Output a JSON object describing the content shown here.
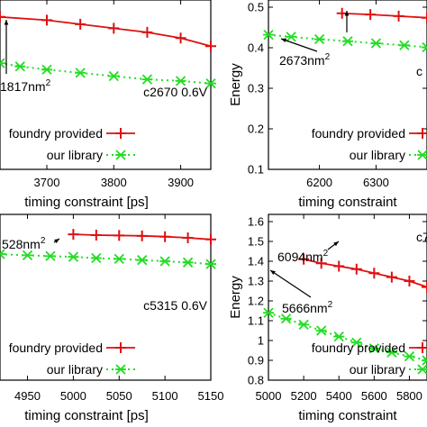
{
  "colors": {
    "foundry": "#dd1111",
    "library": "#22dd22",
    "axis": "#000000"
  },
  "chart_data": [
    {
      "panel": "top-left",
      "type": "line",
      "xlabel": "timing constraint [ps]",
      "ylabel": "",
      "xticks": [
        3700,
        3800,
        3900
      ],
      "xlim": [
        3630,
        3945
      ],
      "yticks": [],
      "ylim": [
        0.3,
        0.5
      ],
      "circuit_label": "c2670 0.6V",
      "series": [
        {
          "name": "foundry provided",
          "x": [
            3630,
            3700,
            3750,
            3800,
            3850,
            3900,
            3945
          ],
          "y": [
            0.488,
            0.484,
            0.479,
            0.474,
            0.469,
            0.462,
            0.452
          ]
        },
        {
          "name": "our library",
          "x": [
            3630,
            3660,
            3700,
            3750,
            3800,
            3850,
            3900,
            3945
          ],
          "y": [
            0.431,
            0.427,
            0.423,
            0.419,
            0.415,
            0.411,
            0.409,
            0.406
          ]
        }
      ],
      "annotations": [
        {
          "text": "1817nm²"
        }
      ],
      "legend": "bottom-left"
    },
    {
      "panel": "top-right",
      "type": "line",
      "xlabel": "timing constraint",
      "ylabel": "Energy",
      "xticks": [
        6200,
        6300
      ],
      "yticks": [
        0.1,
        0.2,
        0.3,
        0.4,
        0.5
      ],
      "ylim": [
        0.1,
        0.5
      ],
      "xlim": [
        6110,
        6390
      ],
      "circuit_label": "c",
      "series": [
        {
          "name": "foundry provided",
          "x": [
            6240,
            6290,
            6340,
            6390
          ],
          "y": [
            0.485,
            0.482,
            0.478,
            0.474
          ]
        },
        {
          "name": "our library",
          "x": [
            6110,
            6150,
            6200,
            6250,
            6300,
            6350,
            6390
          ],
          "y": [
            0.432,
            0.427,
            0.421,
            0.416,
            0.411,
            0.406,
            0.401
          ]
        }
      ],
      "annotations": [
        {
          "text": "2673nm²"
        }
      ],
      "legend": "bottom-right"
    },
    {
      "panel": "bottom-left",
      "type": "line",
      "xlabel": "timing constraint [ps]",
      "ylabel": "",
      "xticks": [
        4950,
        5000,
        5050,
        5100,
        5150
      ],
      "xlim": [
        4920,
        5150
      ],
      "yticks": [],
      "ylim": [
        0.6,
        1.0
      ],
      "circuit_label": "c5315 0.6V",
      "series": [
        {
          "name": "foundry provided",
          "x": [
            5000,
            5025,
            5050,
            5075,
            5100,
            5125,
            5150
          ],
          "y": [
            0.968,
            0.966,
            0.965,
            0.964,
            0.962,
            0.959,
            0.955
          ]
        },
        {
          "name": "our library",
          "x": [
            4920,
            4950,
            4975,
            5000,
            5025,
            5050,
            5075,
            5100,
            5125,
            5150
          ],
          "y": [
            0.918,
            0.915,
            0.913,
            0.911,
            0.908,
            0.906,
            0.903,
            0.9,
            0.897,
            0.893
          ]
        }
      ],
      "annotations": [
        {
          "text": "528nm²"
        }
      ],
      "legend": "bottom-left"
    },
    {
      "panel": "bottom-right",
      "type": "line",
      "xlabel": "timing constraint",
      "ylabel": "Energy",
      "xticks": [
        5000,
        5200,
        5400,
        5600,
        5800
      ],
      "yticks": [
        0.8,
        0.9,
        1,
        1.1,
        1.2,
        1.3,
        1.4,
        1.5,
        1.6
      ],
      "ylim": [
        0.8,
        1.6
      ],
      "xlim": [
        5000,
        5900
      ],
      "circuit_label": "c7",
      "series": [
        {
          "name": "foundry provided",
          "x": [
            5200,
            5300,
            5400,
            5500,
            5600,
            5700,
            5800,
            5900
          ],
          "y": [
            1.41,
            1.39,
            1.375,
            1.36,
            1.34,
            1.32,
            1.3,
            1.27
          ]
        },
        {
          "name": "our library",
          "x": [
            5000,
            5100,
            5200,
            5300,
            5400,
            5500,
            5600,
            5700,
            5800,
            5900
          ],
          "y": [
            1.14,
            1.11,
            1.08,
            1.05,
            1.02,
            0.99,
            0.96,
            0.94,
            0.92,
            0.9
          ]
        }
      ],
      "annotations": [
        {
          "text": "6094nm²"
        },
        {
          "text": "5666nm²"
        }
      ],
      "legend": "bottom-right"
    }
  ]
}
